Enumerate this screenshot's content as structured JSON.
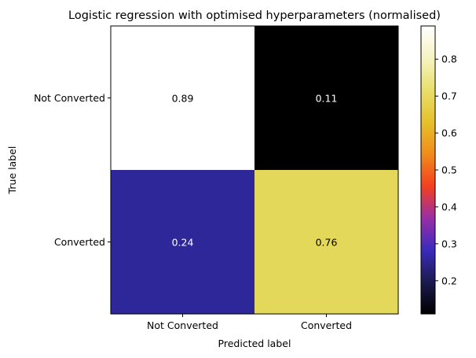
{
  "chart_data": {
    "type": "heatmap",
    "title": "Logistic regression with optimised hyperparameters (normalised)",
    "xlabel": "Predicted label",
    "ylabel": "True label",
    "x_categories": [
      "Not Converted",
      "Converted"
    ],
    "y_categories": [
      "Not Converted",
      "Converted"
    ],
    "values": [
      [
        0.89,
        0.11
      ],
      [
        0.24,
        0.76
      ]
    ],
    "cell_labels": [
      [
        "0.89",
        "0.11"
      ],
      [
        "0.24",
        "0.76"
      ]
    ],
    "colormap": "CMRmap",
    "cell_colors": [
      [
        "#ffffff",
        "#000000"
      ],
      [
        "#2e279a",
        "#e4d85a"
      ]
    ],
    "cell_text_colors": [
      [
        "#000000",
        "#ffffff"
      ],
      [
        "#ffffff",
        "#000000"
      ]
    ],
    "colorbar": {
      "range": [
        0.11,
        0.89
      ],
      "ticks": [
        "0.2",
        "0.3",
        "0.4",
        "0.5",
        "0.6",
        "0.7",
        "0.8"
      ],
      "tick_values": [
        0.2,
        0.3,
        0.4,
        0.5,
        0.6,
        0.7,
        0.8
      ],
      "gradient_stops": [
        "#000000",
        "#1c1a4e",
        "#3b2bbd",
        "#9a2ea5",
        "#f2401f",
        "#f08c1c",
        "#e6c02c",
        "#e8df6a",
        "#f6f3c2",
        "#ffffff"
      ]
    }
  }
}
